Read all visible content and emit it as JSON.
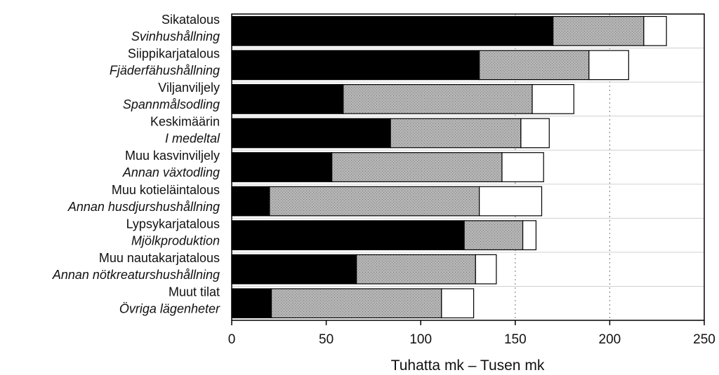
{
  "chart_data": {
    "type": "bar",
    "orientation": "horizontal",
    "stacked": true,
    "categories": [
      {
        "fi": "Sikatalous",
        "sv": "Svinhushållning"
      },
      {
        "fi": "Siippikarjatalous",
        "sv": "Fjäderfähushållning"
      },
      {
        "fi": "Viljanviljely",
        "sv": "Spannmålsodling"
      },
      {
        "fi": "Keskimäärin",
        "sv": "I medeltal"
      },
      {
        "fi": "Muu kasvinviljely",
        "sv": "Annan växtodling"
      },
      {
        "fi": "Muu kotieläintalous",
        "sv": "Annan husdjurshushållning"
      },
      {
        "fi": "Lypsykarjatalous",
        "sv": "Mjölkproduktion"
      },
      {
        "fi": "Muu nautakarjatalous",
        "sv": "Annan nötkreatur­shushållning"
      },
      {
        "fi": "Muut tilat",
        "sv": "Övriga lägenheter"
      }
    ],
    "series": [
      {
        "color": "#000000",
        "values": [
          170,
          131,
          59,
          84,
          53,
          20,
          123,
          66,
          21
        ]
      },
      {
        "color": "#a8a8a8",
        "values": [
          48,
          58,
          100,
          69,
          90,
          111,
          31,
          63,
          90
        ]
      },
      {
        "color": "#ffffff",
        "values": [
          12,
          21,
          22,
          15,
          22,
          33,
          7,
          11,
          17
        ]
      }
    ],
    "xlabel": "Tuhatta mk – Tusen mk",
    "xlim": [
      0,
      250
    ],
    "xticks": [
      0,
      50,
      100,
      150,
      200,
      250
    ],
    "gridlines": [
      150,
      200
    ],
    "grid": "dotted vertical at 150 and 200",
    "legend": "none"
  }
}
